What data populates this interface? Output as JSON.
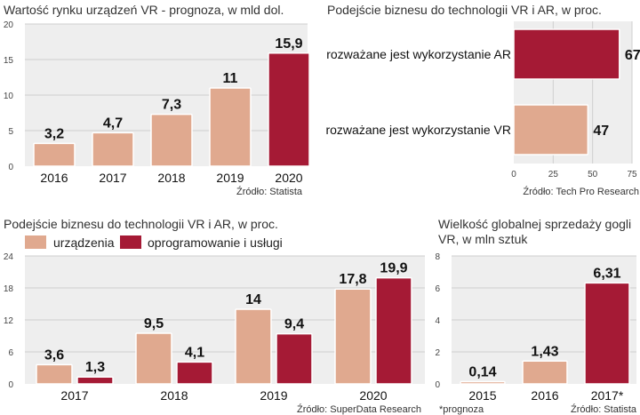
{
  "colors": {
    "panel": "#eeeeee",
    "light": "#e0a98f",
    "dark": "#a51a35",
    "grid": "#cfcfcf",
    "border": "#ffffff"
  },
  "chart_data": [
    {
      "type": "bar",
      "title": "Wartość rynku urządzeń VR - prognoza, w mld dol.",
      "categories": [
        "2016",
        "2017",
        "2018",
        "2019",
        "2020"
      ],
      "values": [
        3.2,
        4.7,
        7.3,
        11,
        15.9
      ],
      "value_labels": [
        "3,2",
        "4,7",
        "7,3",
        "11",
        "15,9"
      ],
      "highlight_index": 4,
      "yticks": [
        0,
        5,
        10,
        15,
        20
      ],
      "ylim": [
        0,
        20
      ],
      "source": "Źródło: Statista"
    },
    {
      "type": "bar",
      "orientation": "horizontal",
      "title": "Podejście biznesu do technologii VR i AR, w proc.",
      "categories": [
        "rozważane jest wykorzystanie AR",
        "rozważane jest wykorzystanie VR"
      ],
      "values": [
        67,
        47
      ],
      "value_labels": [
        "67",
        "47"
      ],
      "xticks": [
        0,
        25,
        50,
        75
      ],
      "xlim": [
        0,
        75
      ],
      "source": "Źródło: Tech Pro Research"
    },
    {
      "type": "bar",
      "title": "Podejście biznesu do technologii VR i AR, w proc.",
      "categories": [
        "2017",
        "2018",
        "2019",
        "2020"
      ],
      "series": [
        {
          "name": "urządzenia",
          "values": [
            3.6,
            9.5,
            14,
            17.8
          ],
          "value_labels": [
            "3,6",
            "9,5",
            "14",
            "17,8"
          ]
        },
        {
          "name": "oprogramowanie i usługi",
          "values": [
            1.3,
            4.1,
            9.4,
            19.9
          ],
          "value_labels": [
            "1,3",
            "4,1",
            "9,4",
            "19,9"
          ]
        }
      ],
      "yticks": [
        0,
        6,
        12,
        18,
        24
      ],
      "ylim": [
        0,
        24
      ],
      "source": "Źródło: SuperData Research"
    },
    {
      "type": "bar",
      "title_lines": [
        "Wielkość globalnej sprzedaży gogli",
        "VR, w mln sztuk"
      ],
      "categories": [
        "2015",
        "2016",
        "2017*"
      ],
      "values": [
        0.14,
        1.43,
        6.31
      ],
      "value_labels": [
        "0,14",
        "1,43",
        "6,31"
      ],
      "highlight_index": 2,
      "yticks": [
        0,
        2,
        4,
        6,
        8
      ],
      "ylim": [
        0,
        8
      ],
      "footnote": "*prognoza",
      "source": "Źródło: Statista"
    }
  ]
}
